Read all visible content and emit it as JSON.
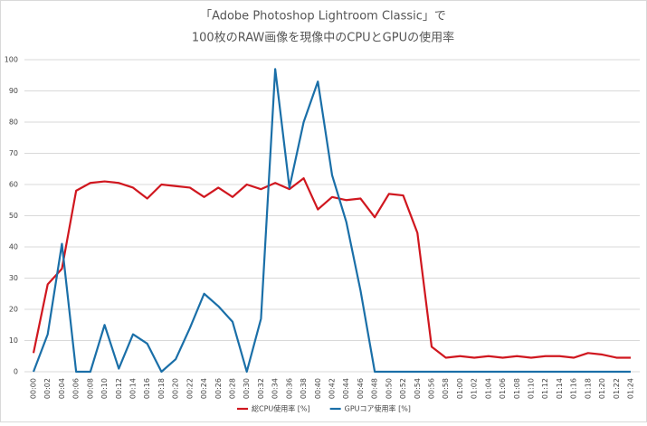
{
  "chart_data": {
    "type": "line",
    "title": [
      "「Adobe Photoshop Lightroom Classic」で",
      "100枚のRAW画像を現像中のCPUとGPUの使用率"
    ],
    "categories": [
      "00:00",
      "00:02",
      "00:04",
      "00:06",
      "00:08",
      "00:10",
      "00:12",
      "00:14",
      "00:16",
      "00:18",
      "00:20",
      "00:22",
      "00:24",
      "00:26",
      "00:28",
      "00:30",
      "00:32",
      "00:34",
      "00:36",
      "00:38",
      "00:40",
      "00:42",
      "00:44",
      "00:46",
      "00:48",
      "00:50",
      "00:52",
      "00:54",
      "00:56",
      "00:58",
      "01:00",
      "01:02",
      "01:04",
      "01:06",
      "01:08",
      "01:10",
      "01:12",
      "01:14",
      "01:16",
      "01:18",
      "01:20",
      "01:22",
      "01:24"
    ],
    "series": [
      {
        "name": "総CPU使用率 [%]",
        "color": "#d0171f",
        "values": [
          6,
          28,
          33,
          58,
          60.5,
          61,
          60.5,
          59,
          55.5,
          60,
          59.5,
          59,
          56,
          59,
          56,
          60,
          58.5,
          60.5,
          58.5,
          62,
          52,
          56,
          55,
          55.5,
          49.5,
          57,
          56.5,
          44.5,
          8,
          4.5,
          5,
          4.5,
          5,
          4.5,
          5,
          4.5,
          5,
          5,
          4.5,
          6,
          5.5,
          4.5,
          4.5
        ]
      },
      {
        "name": "GPUコア使用率 [%]",
        "color": "#1a6fa8",
        "values": [
          0,
          12,
          41,
          0,
          0,
          15,
          1,
          12,
          9,
          0,
          4,
          14,
          25,
          21,
          16,
          0,
          17,
          97,
          59,
          80,
          93,
          63,
          48,
          26,
          0,
          0,
          0,
          0,
          0,
          0,
          0,
          0,
          0,
          0,
          0,
          0,
          0,
          0,
          0,
          0,
          0,
          0,
          0
        ]
      }
    ],
    "ylim": [
      0,
      100
    ],
    "yticks": [
      0,
      10,
      20,
      30,
      40,
      50,
      60,
      70,
      80,
      90,
      100
    ],
    "grid": true,
    "legend": "bottom"
  }
}
